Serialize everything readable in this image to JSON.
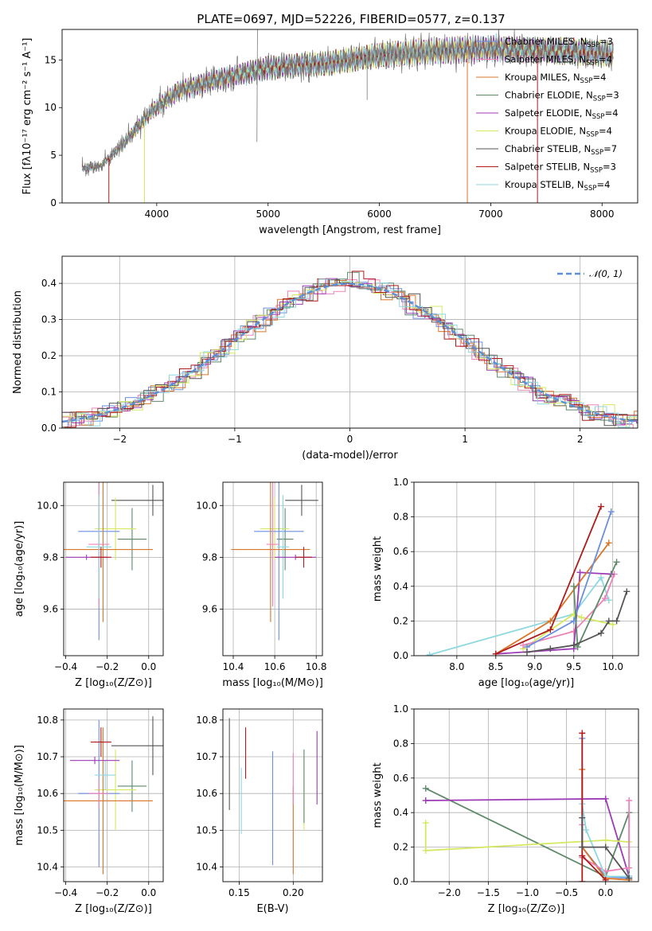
{
  "figure": {
    "title": "PLATE=0697, MJD=52226, FIBERID=0577, z=0.137"
  },
  "legend_entries": [
    {
      "label": "Chabrier MILES, N$_{SSP}$=3",
      "text": "Chabrier MILES, N",
      "sub": "SSP",
      "tail": "=3",
      "color": "#6b8ee0"
    },
    {
      "label": "Salpeter MILES, N$_{SSP}$=4",
      "text": "Salpeter MILES, N",
      "sub": "SSP",
      "tail": "=4",
      "color": "#ee82b8"
    },
    {
      "label": "Kroupa MILES, N$_{SSP}$=4",
      "text": "Kroupa MILES, N",
      "sub": "SSP",
      "tail": "=4",
      "color": "#d9762a"
    },
    {
      "label": "Chabrier ELODIE, N$_{SSP}$=3",
      "text": "Chabrier ELODIE, N",
      "sub": "SSP",
      "tail": "=3",
      "color": "#5e8a6a"
    },
    {
      "label": "Salpeter ELODIE, N$_{SSP}$=4",
      "text": "Salpeter ELODIE, N",
      "sub": "SSP",
      "tail": "=4",
      "color": "#9c3bb5"
    },
    {
      "label": "Kroupa ELODIE, N$_{SSP}$=4",
      "text": "Kroupa ELODIE, N",
      "sub": "SSP",
      "tail": "=4",
      "color": "#d6e860"
    },
    {
      "label": "Chabrier STELIB, N$_{SSP}$=7",
      "text": "Chabrier STELIB, N",
      "sub": "SSP",
      "tail": "=7",
      "color": "#555555"
    },
    {
      "label": "Salpeter STELIB, N$_{SSP}$=3",
      "text": "Salpeter STELIB, N",
      "sub": "SSP",
      "tail": "=3",
      "color": "#b01b1b"
    },
    {
      "label": "Kroupa STELIB, N$_{SSP}$=4",
      "text": "Kroupa STELIB, N",
      "sub": "SSP",
      "tail": "=4",
      "color": "#8ed8e0"
    }
  ],
  "chart_data": [
    {
      "id": "spectrum",
      "type": "line",
      "xlabel": "wavelength [Angstrom, rest frame]",
      "ylabel": "Flux [fλ10⁻¹⁷ erg cm⁻² s⁻¹ A⁻¹]",
      "xlim": [
        3150,
        8320
      ],
      "ylim": [
        0,
        18.2
      ],
      "xticks": [
        4000,
        5000,
        6000,
        7000,
        8000
      ],
      "yticks": [
        0,
        5,
        10,
        15
      ],
      "grid": false,
      "legend": "top-right",
      "continuum_points": [
        [
          3330,
          3.6
        ],
        [
          3500,
          3.9
        ],
        [
          3700,
          6.2
        ],
        [
          3950,
          9.6
        ],
        [
          4200,
          11.8
        ],
        [
          4500,
          12.8
        ],
        [
          5000,
          14.2
        ],
        [
          5500,
          14.6
        ],
        [
          6000,
          15.5
        ],
        [
          6500,
          15.9
        ],
        [
          7000,
          16.2
        ],
        [
          7500,
          16.0
        ],
        [
          8000,
          15.7
        ],
        [
          8100,
          15.5
        ]
      ],
      "observed_spike_points": [
        [
          4900,
          6.4
        ],
        [
          4905,
          18.2
        ],
        [
          5890,
          10.8
        ],
        [
          6560,
          10.0
        ]
      ],
      "model_drop_points": [
        [
          3570,
          0
        ],
        [
          3890,
          0
        ],
        [
          6790,
          0
        ],
        [
          7420,
          0
        ]
      ]
    },
    {
      "id": "residuals",
      "type": "histogram",
      "xlabel": "(data-model)/error",
      "ylabel": "Normed distribution",
      "xlim": [
        -2.5,
        2.5
      ],
      "ylim": [
        0,
        0.475
      ],
      "xticks": [
        -2,
        -1,
        0,
        1,
        2
      ],
      "yticks": [
        0.0,
        0.1,
        0.2,
        0.3,
        0.4
      ],
      "grid": true,
      "legend": "top-right",
      "reference_label": "𝒩(0, 1)",
      "bin_width": 0.1
    },
    {
      "id": "age-vs-Z",
      "type": "errorbar",
      "xlabel": "Z [log₁₀(Z/Z⊙)]",
      "ylabel": "age  [log₁₀(age/yr)]",
      "xlim": [
        -0.41,
        0.07
      ],
      "ylim": [
        9.42,
        10.09
      ],
      "xticks": [
        -0.4,
        -0.2,
        0.0
      ],
      "yticks": [
        9.6,
        9.8,
        10.0
      ],
      "grid": true,
      "points": [
        {
          "color": "#555555",
          "x": 0.02,
          "xerr": 0.2,
          "y": 10.02,
          "yerr": 0.06
        },
        {
          "color": "#5e8a6a",
          "x": -0.08,
          "xerr": 0.07,
          "y": 9.87,
          "yerr": 0.12
        },
        {
          "color": "#d6e860",
          "x": -0.16,
          "xerr": 0.1,
          "y": 9.91,
          "yerr": 0.12
        },
        {
          "color": "#6b8ee0",
          "x": -0.24,
          "xerr": 0.1,
          "y": 9.9,
          "yerr": 0.42
        },
        {
          "color": "#d9762a",
          "x": -0.22,
          "xerr": 0.24,
          "y": 9.83,
          "yerr": 0.28
        },
        {
          "color": "#ee82b8",
          "x": -0.24,
          "xerr": 0.05,
          "y": 9.85,
          "yerr": 0.24
        },
        {
          "color": "#8ed8e0",
          "x": -0.24,
          "xerr": 0.06,
          "y": 9.84,
          "yerr": 0.2
        },
        {
          "color": "#9c3bb5",
          "x": -0.3,
          "xerr": 0.1,
          "y": 9.8,
          "yerr": 0.01
        },
        {
          "color": "#b01b1b",
          "x": -0.23,
          "xerr": 0.05,
          "y": 9.8,
          "yerr": 0.04
        }
      ]
    },
    {
      "id": "age-vs-mass",
      "type": "errorbar",
      "xlabel": "mass [log₁₀(M/M⊙)]",
      "ylabel": "",
      "xlim": [
        10.35,
        10.83
      ],
      "ylim": [
        9.42,
        10.09
      ],
      "xticks": [
        10.4,
        10.6,
        10.8
      ],
      "yticks": [
        9.6,
        9.8,
        10.0
      ],
      "grid": true,
      "points": [
        {
          "color": "#555555",
          "x": 10.73,
          "xerr": 0.08,
          "y": 10.02,
          "yerr": 0.06
        },
        {
          "color": "#5e8a6a",
          "x": 10.65,
          "xerr": 0.04,
          "y": 9.87,
          "yerr": 0.12
        },
        {
          "color": "#d6e860",
          "x": 10.6,
          "xerr": 0.07,
          "y": 9.91,
          "yerr": 0.12
        },
        {
          "color": "#6b8ee0",
          "x": 10.62,
          "xerr": 0.12,
          "y": 9.9,
          "yerr": 0.42
        },
        {
          "color": "#d9762a",
          "x": 10.58,
          "xerr": 0.19,
          "y": 9.83,
          "yerr": 0.28
        },
        {
          "color": "#ee82b8",
          "x": 10.59,
          "xerr": 0.03,
          "y": 9.85,
          "yerr": 0.24
        },
        {
          "color": "#8ed8e0",
          "x": 10.64,
          "xerr": 0.03,
          "y": 9.84,
          "yerr": 0.2
        },
        {
          "color": "#9c3bb5",
          "x": 10.7,
          "xerr": 0.1,
          "y": 9.8,
          "yerr": 0.01
        },
        {
          "color": "#b01b1b",
          "x": 10.74,
          "xerr": 0.04,
          "y": 9.8,
          "yerr": 0.04
        }
      ]
    },
    {
      "id": "weight-vs-age",
      "type": "line",
      "xlabel": "age  [log₁₀(age/yr)]",
      "ylabel": "mass weight",
      "xlim": [
        7.45,
        10.33
      ],
      "ylim": [
        0,
        1.0
      ],
      "xticks": [
        8.0,
        8.5,
        9.0,
        9.5,
        10.0
      ],
      "yticks": [
        0.0,
        0.2,
        0.4,
        0.6,
        0.8,
        1.0
      ],
      "grid": true,
      "series": [
        {
          "color": "#8ed8e0",
          "x": [
            7.65,
            9.5,
            9.85,
            9.95
          ],
          "y": [
            0.005,
            0.24,
            0.45,
            0.32
          ]
        },
        {
          "color": "#d6e860",
          "x": [
            8.85,
            9.5,
            9.6,
            10.0
          ],
          "y": [
            0.04,
            0.24,
            0.22,
            0.18
          ]
        },
        {
          "color": "#ee82b8",
          "x": [
            8.85,
            9.5,
            9.9,
            10.02
          ],
          "y": [
            0.06,
            0.14,
            0.33,
            0.47
          ]
        },
        {
          "color": "#9c3bb5",
          "x": [
            8.5,
            9.5,
            9.58,
            9.98
          ],
          "y": [
            0.01,
            0.04,
            0.48,
            0.47
          ]
        },
        {
          "color": "#d9762a",
          "x": [
            8.5,
            9.2,
            9.95
          ],
          "y": [
            0.01,
            0.2,
            0.65
          ]
        },
        {
          "color": "#6b8ee0",
          "x": [
            8.9,
            9.5,
            9.98
          ],
          "y": [
            0.05,
            0.2,
            0.83
          ]
        },
        {
          "color": "#5e8a6a",
          "x": [
            9.5,
            9.55,
            10.05
          ],
          "y": [
            0.4,
            0.05,
            0.54
          ]
        },
        {
          "color": "#b01b1b",
          "x": [
            8.5,
            9.2,
            9.85
          ],
          "y": [
            0.01,
            0.15,
            0.86
          ]
        },
        {
          "color": "#555555",
          "x": [
            8.9,
            9.2,
            9.5,
            9.85,
            9.95,
            10.05,
            10.18
          ],
          "y": [
            0.02,
            0.04,
            0.06,
            0.13,
            0.2,
            0.2,
            0.37
          ]
        }
      ]
    },
    {
      "id": "mass-vs-Z",
      "type": "errorbar",
      "xlabel": "Z [log₁₀(Z/Z⊙)]",
      "ylabel": "mass [log₁₀(M/M⊙)]",
      "xlim": [
        -0.41,
        0.07
      ],
      "ylim": [
        10.36,
        10.83
      ],
      "xticks": [
        -0.4,
        -0.2,
        0.0
      ],
      "yticks": [
        10.4,
        10.5,
        10.6,
        10.7,
        10.8
      ],
      "grid": true,
      "points": [
        {
          "color": "#555555",
          "x": 0.02,
          "xerr": 0.2,
          "y": 10.73,
          "yerr": 0.08
        },
        {
          "color": "#5e8a6a",
          "x": -0.08,
          "xerr": 0.07,
          "y": 10.62,
          "yerr": 0.07
        },
        {
          "color": "#d6e860",
          "x": -0.16,
          "xerr": 0.1,
          "y": 10.61,
          "yerr": 0.11
        },
        {
          "color": "#6b8ee0",
          "x": -0.24,
          "xerr": 0.1,
          "y": 10.6,
          "yerr": 0.2
        },
        {
          "color": "#d9762a",
          "x": -0.22,
          "xerr": 0.24,
          "y": 10.58,
          "yerr": 0.2
        },
        {
          "color": "#ee82b8",
          "x": -0.24,
          "xerr": 0.05,
          "y": 10.6,
          "yerr": 0.04
        },
        {
          "color": "#8ed8e0",
          "x": -0.21,
          "xerr": 0.05,
          "y": 10.65,
          "yerr": 0.04
        },
        {
          "color": "#9c3bb5",
          "x": -0.26,
          "xerr": 0.12,
          "y": 10.69,
          "yerr": 0.01
        },
        {
          "color": "#b01b1b",
          "x": -0.23,
          "xerr": 0.05,
          "y": 10.74,
          "yerr": 0.04
        }
      ]
    },
    {
      "id": "mass-vs-EBV",
      "type": "errorbar",
      "xlabel": "E(B-V)",
      "ylabel": "",
      "xlim": [
        0.135,
        0.227
      ],
      "ylim": [
        10.36,
        10.83
      ],
      "xticks": [
        0.15,
        0.2
      ],
      "yticks": [
        10.4,
        10.5,
        10.6,
        10.7,
        10.8
      ],
      "grid": true,
      "points": [
        {
          "color": "#555555",
          "x": 0.141,
          "y": 10.68,
          "yerr": 0.125
        },
        {
          "color": "#8ed8e0",
          "x": 0.152,
          "y": 10.58,
          "yerr": 0.09
        },
        {
          "color": "#b01b1b",
          "x": 0.156,
          "y": 10.71,
          "yerr": 0.07
        },
        {
          "color": "#6b8ee0",
          "x": 0.181,
          "y": 10.56,
          "yerr": 0.155
        },
        {
          "color": "#d9762a",
          "x": 0.2,
          "y": 10.5,
          "yerr": 0.12
        },
        {
          "color": "#ee82b8",
          "x": 0.2,
          "y": 10.64,
          "yerr": 0.07
        },
        {
          "color": "#d6e860",
          "x": 0.21,
          "y": 10.6,
          "yerr": 0.1
        },
        {
          "color": "#5e8a6a",
          "x": 0.21,
          "y": 10.62,
          "yerr": 0.1
        },
        {
          "color": "#9c3bb5",
          "x": 0.222,
          "y": 10.67,
          "yerr": 0.1
        }
      ]
    },
    {
      "id": "weight-vs-Z",
      "type": "line",
      "xlabel": "Z [log₁₀(Z/Z⊙)]",
      "ylabel": "mass weight",
      "xlim": [
        -2.45,
        0.42
      ],
      "ylim": [
        0,
        1.0
      ],
      "xticks": [
        -2.0,
        -1.5,
        -1.0,
        -0.5,
        0.0
      ],
      "yticks": [
        0.0,
        0.2,
        0.4,
        0.6,
        0.8,
        1.0
      ],
      "grid": true,
      "series": [
        {
          "color": "#5e8a6a",
          "x": [
            -2.3,
            0.0,
            0.3,
            0.3
          ],
          "y": [
            0.54,
            0.03,
            0.4,
            0.03
          ]
        },
        {
          "color": "#9c3bb5",
          "x": [
            -2.3,
            0.0,
            0.3,
            0.3
          ],
          "y": [
            0.47,
            0.48,
            0.03,
            0.01
          ]
        },
        {
          "color": "#d6e860",
          "x": [
            -2.3,
            -2.3,
            0.0,
            0.3
          ],
          "y": [
            0.34,
            0.18,
            0.24,
            0.23
          ]
        },
        {
          "color": "#6b8ee0",
          "x": [
            -0.3,
            -0.3,
            0.0,
            0.3
          ],
          "y": [
            0.83,
            0.2,
            0.03,
            0.02
          ]
        },
        {
          "color": "#d9762a",
          "x": [
            -0.3,
            -0.3,
            0.0,
            0.3
          ],
          "y": [
            0.65,
            0.2,
            0.02,
            0.01
          ]
        },
        {
          "color": "#ee82b8",
          "x": [
            -0.3,
            -0.3,
            0.0,
            0.3,
            0.3
          ],
          "y": [
            0.33,
            0.14,
            0.06,
            0.08,
            0.47
          ]
        },
        {
          "color": "#8ed8e0",
          "x": [
            -0.3,
            -0.25,
            0.0,
            0.3
          ],
          "y": [
            0.45,
            0.3,
            0.03,
            0.03
          ]
        },
        {
          "color": "#b01b1b",
          "x": [
            -0.3,
            -0.3,
            -0.3,
            0.0
          ],
          "y": [
            0.86,
            0.0,
            0.15,
            0.01
          ]
        },
        {
          "color": "#555555",
          "x": [
            -0.3,
            -0.3,
            0.0,
            0.3
          ],
          "y": [
            0.37,
            0.2,
            0.2,
            0.02
          ]
        }
      ]
    }
  ]
}
